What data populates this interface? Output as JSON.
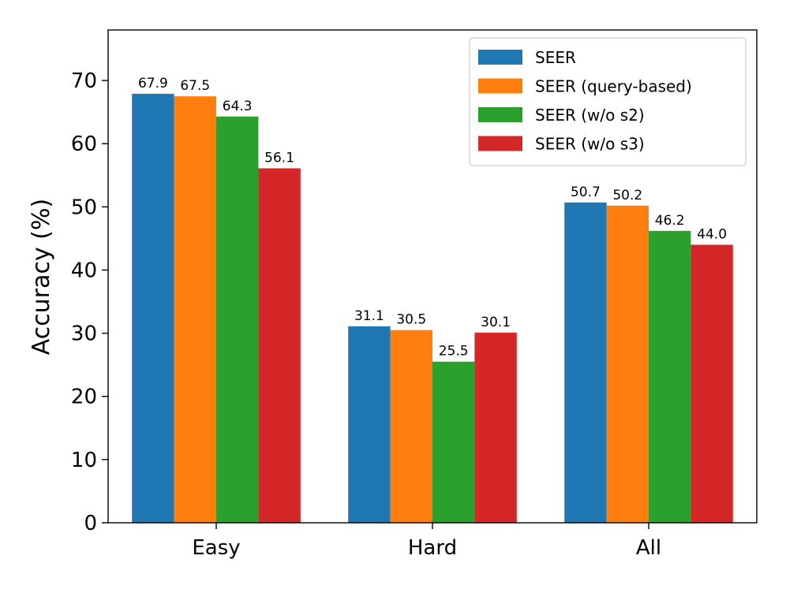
{
  "chart_data": {
    "type": "bar",
    "title": "",
    "xlabel": "",
    "ylabel": "Accuracy (%)",
    "ylim": [
      0,
      78
    ],
    "yticks": [
      0,
      10,
      20,
      30,
      40,
      50,
      60,
      70
    ],
    "categories": [
      "Easy",
      "Hard",
      "All"
    ],
    "legend_position": "top-right",
    "series": [
      {
        "name": "SEER",
        "color": "#1f77b4",
        "values": [
          67.9,
          31.1,
          50.7
        ],
        "labels": [
          "67.9",
          "31.1",
          "50.7"
        ]
      },
      {
        "name": "SEER (query-based)",
        "color": "#ff7f0e",
        "values": [
          67.5,
          30.5,
          50.2
        ],
        "labels": [
          "67.5",
          "30.5",
          "50.2"
        ]
      },
      {
        "name": "SEER (w/o s2)",
        "color": "#2ca02c",
        "values": [
          64.3,
          25.5,
          46.2
        ],
        "labels": [
          "64.3",
          "25.5",
          "46.2"
        ]
      },
      {
        "name": "SEER (w/o s3)",
        "color": "#d62728",
        "values": [
          56.1,
          30.1,
          44.0
        ],
        "labels": [
          "56.1",
          "30.1",
          "44.0"
        ]
      }
    ]
  }
}
